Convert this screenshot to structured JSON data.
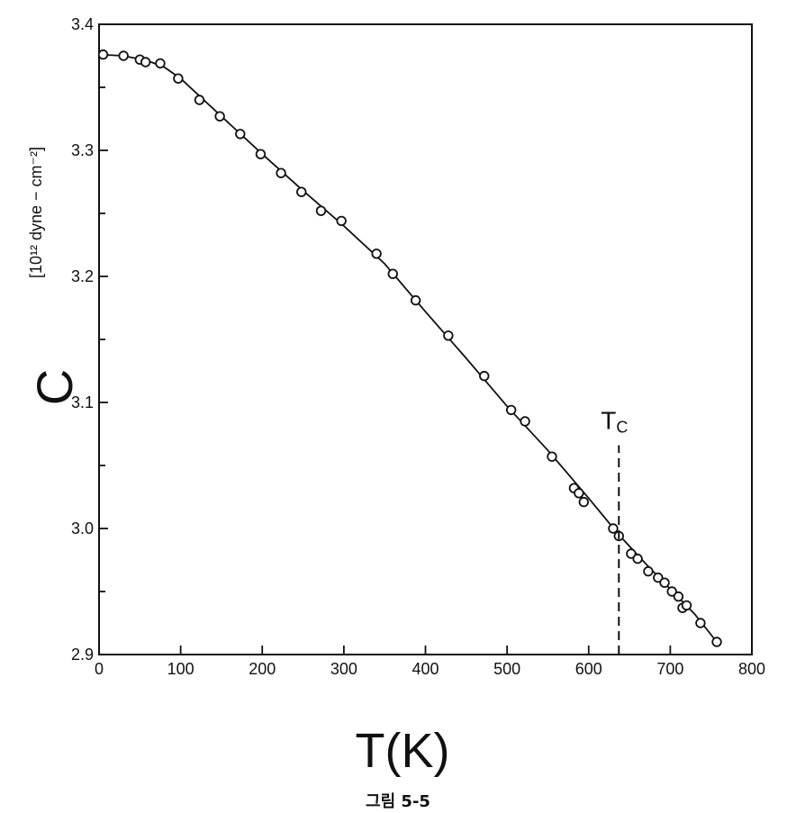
{
  "chart_data": {
    "type": "scatter",
    "title": "",
    "xlabel": "T(K)",
    "ylabel": "C",
    "yunit": "[10¹² dyne − cm⁻²]",
    "xlim": [
      0,
      800
    ],
    "ylim": [
      2.9,
      3.4
    ],
    "x_ticks": [
      0,
      100,
      200,
      300,
      400,
      500,
      600,
      700,
      800
    ],
    "x_tick_labels": [
      "0",
      "100",
      "200",
      "300",
      "400",
      "500",
      "600",
      "700",
      "800"
    ],
    "y_ticks": [
      2.9,
      3.0,
      3.1,
      3.2,
      3.3,
      3.4
    ],
    "y_tick_labels": [
      "2.9",
      "3.0",
      "3.1",
      "3.2",
      "3.3",
      "3.4"
    ],
    "grid": false,
    "series": [
      {
        "x": [
          5,
          30,
          50,
          57,
          75,
          97,
          123,
          148,
          173,
          198,
          223,
          248,
          272,
          297,
          340,
          360,
          388,
          428,
          472,
          505,
          522,
          555,
          582,
          588,
          594,
          630,
          637,
          652,
          660,
          673,
          685,
          693,
          702,
          710,
          715,
          720,
          737,
          757
        ],
        "y": [
          3.376,
          3.375,
          3.372,
          3.37,
          3.369,
          3.357,
          3.34,
          3.327,
          3.313,
          3.297,
          3.282,
          3.267,
          3.252,
          3.244,
          3.218,
          3.202,
          3.181,
          3.153,
          3.121,
          3.094,
          3.085,
          3.057,
          3.032,
          3.028,
          3.021,
          3.0,
          2.994,
          2.98,
          2.976,
          2.966,
          2.961,
          2.957,
          2.95,
          2.946,
          2.937,
          2.939,
          2.925,
          2.91
        ]
      }
    ],
    "fit_line": {
      "x": [
        0,
        30,
        60,
        80,
        100,
        150,
        200,
        250,
        300,
        350,
        400,
        450,
        500,
        550,
        600,
        637,
        670,
        700,
        730,
        757
      ],
      "y": [
        3.376,
        3.375,
        3.371,
        3.366,
        3.357,
        3.327,
        3.297,
        3.268,
        3.24,
        3.21,
        3.172,
        3.135,
        3.097,
        3.062,
        3.024,
        2.995,
        2.972,
        2.952,
        2.932,
        2.91
      ]
    },
    "annotations": [
      {
        "text": "T",
        "subscript": "C",
        "x": 637,
        "line_y": [
          2.9,
          3.066
        ]
      }
    ]
  },
  "caption": "그림 5-5"
}
